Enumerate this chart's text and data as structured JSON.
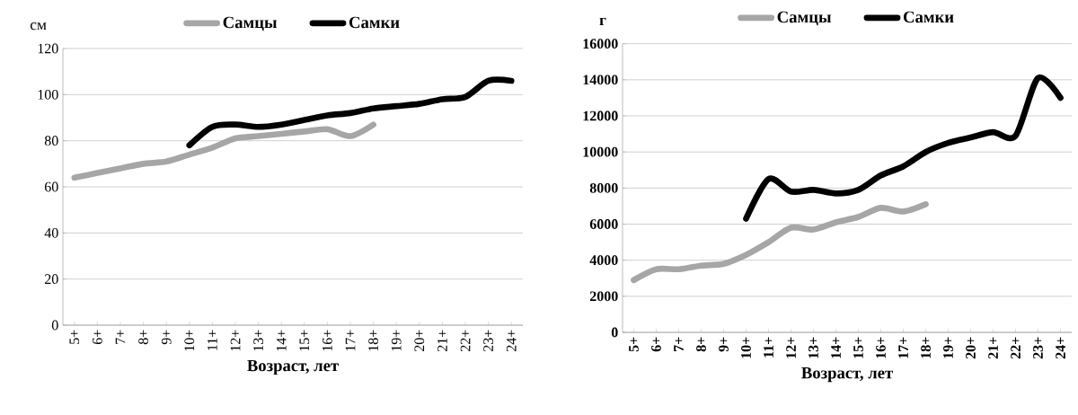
{
  "chart_data": [
    {
      "type": "line",
      "ylabel": "см",
      "xlabel": "Возраст, лет",
      "categories": [
        "5+",
        "6+",
        "7+",
        "8+",
        "9+",
        "10+",
        "11+",
        "12+",
        "13+",
        "14+",
        "15+",
        "16+",
        "17+",
        "18+",
        "19+",
        "20+",
        "21+",
        "22+",
        "23+",
        "24+"
      ],
      "series": [
        {
          "name": "Самцы",
          "color": "#a6a6a6",
          "values": [
            64,
            66,
            68,
            70,
            71,
            74,
            77,
            81,
            82,
            83,
            84,
            85,
            82,
            87,
            null,
            null,
            null,
            null,
            null,
            null
          ]
        },
        {
          "name": "Самки",
          "color": "#000000",
          "values": [
            null,
            null,
            null,
            null,
            null,
            78,
            86,
            87,
            86,
            87,
            89,
            91,
            92,
            94,
            95,
            96,
            98,
            99,
            106,
            106
          ]
        }
      ],
      "ylim": [
        0,
        120
      ],
      "yticks": [
        0,
        20,
        40,
        60,
        80,
        100,
        120
      ],
      "grid": "y",
      "legend": "top",
      "marker": "none"
    },
    {
      "type": "line",
      "ylabel": "г",
      "xlabel": "Возраст, лет",
      "categories": [
        "5+",
        "6+",
        "7+",
        "8+",
        "9+",
        "10+",
        "11+",
        "12+",
        "13+",
        "14+",
        "15+",
        "16+",
        "17+",
        "18+",
        "19+",
        "20+",
        "21+",
        "22+",
        "23+",
        "24+"
      ],
      "series": [
        {
          "name": "Самцы",
          "color": "#a6a6a6",
          "values": [
            2900,
            3500,
            3500,
            3700,
            3800,
            4300,
            5000,
            5800,
            5700,
            6100,
            6400,
            6900,
            6700,
            7100,
            null,
            null,
            null,
            null,
            null,
            null
          ]
        },
        {
          "name": "Самки",
          "color": "#000000",
          "values": [
            null,
            null,
            null,
            null,
            null,
            6300,
            8500,
            7800,
            7900,
            7700,
            7900,
            8700,
            9200,
            10000,
            10500,
            10800,
            11100,
            10900,
            14100,
            13000
          ]
        }
      ],
      "ylim": [
        0,
        16000
      ],
      "yticks": [
        0,
        2000,
        4000,
        6000,
        8000,
        10000,
        12000,
        14000,
        16000
      ],
      "grid": "y",
      "legend": "top",
      "marker": "none"
    }
  ]
}
